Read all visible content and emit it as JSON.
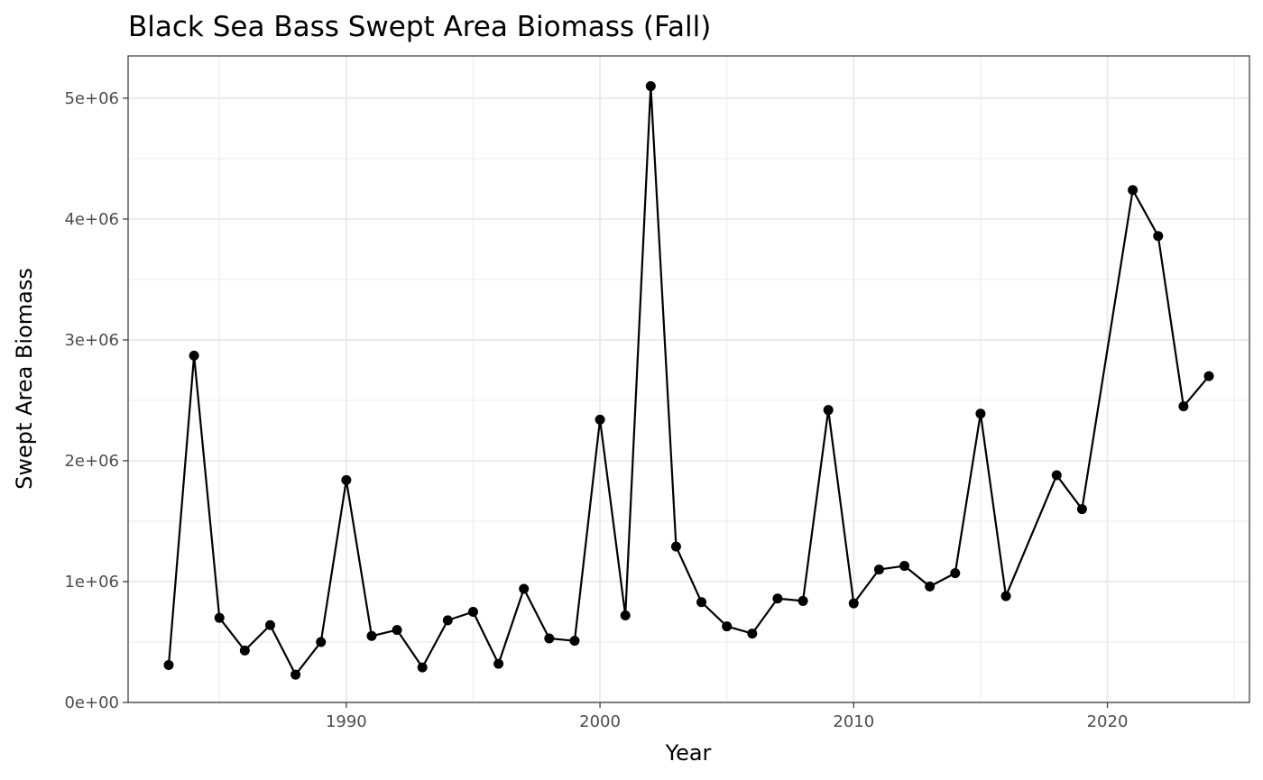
{
  "chart_data": {
    "type": "line",
    "title": "Black Sea Bass Swept Area Biomass (Fall)",
    "xlabel": "Year",
    "ylabel": "Swept Area Biomass",
    "xlim": [
      1981.4,
      2025.6
    ],
    "ylim": [
      0,
      5350000
    ],
    "x_ticks": [
      1990,
      2000,
      2010,
      2020
    ],
    "x_tick_labels": [
      "1990",
      "2000",
      "2010",
      "2020"
    ],
    "x_minor_ticks": [
      1985,
      1995,
      2005,
      2015,
      2025
    ],
    "y_ticks": [
      0,
      1000000,
      2000000,
      3000000,
      4000000,
      5000000
    ],
    "y_tick_labels": [
      "0e+00",
      "1e+06",
      "2e+06",
      "3e+06",
      "4e+06",
      "5e+06"
    ],
    "y_minor_ticks": [
      500000,
      1500000,
      2500000,
      3500000,
      4500000
    ],
    "grid": true,
    "legend": "none",
    "colors": {
      "line": "#000000",
      "point": "#000000",
      "grid": "#ebebeb",
      "border": "#333333"
    },
    "x": [
      1983,
      1984,
      1985,
      1986,
      1987,
      1988,
      1989,
      1990,
      1991,
      1992,
      1993,
      1994,
      1995,
      1996,
      1997,
      1998,
      1999,
      2000,
      2001,
      2002,
      2003,
      2004,
      2005,
      2006,
      2007,
      2008,
      2009,
      2010,
      2011,
      2012,
      2013,
      2014,
      2015,
      2016,
      2018,
      2019,
      2021,
      2022,
      2023,
      2024
    ],
    "y": [
      310000,
      2870000,
      700000,
      430000,
      640000,
      230000,
      500000,
      1840000,
      550000,
      600000,
      290000,
      680000,
      750000,
      320000,
      940000,
      530000,
      510000,
      2340000,
      720000,
      5100000,
      1290000,
      830000,
      630000,
      570000,
      860000,
      840000,
      2420000,
      820000,
      1100000,
      1130000,
      960000,
      1070000,
      2390000,
      880000,
      1880000,
      1600000,
      4240000,
      3860000,
      2450000,
      2700000
    ]
  }
}
